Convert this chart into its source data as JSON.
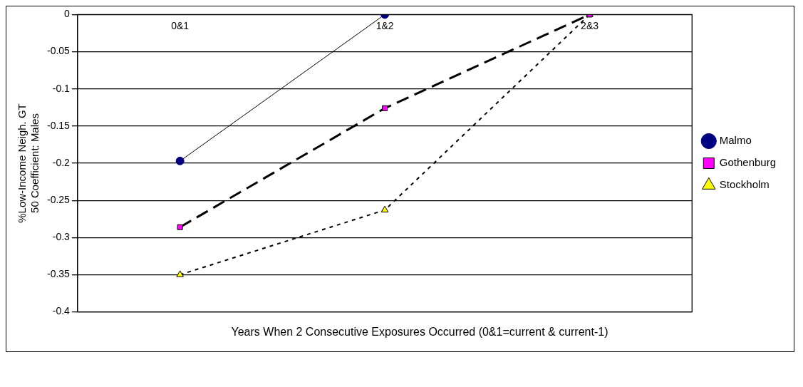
{
  "chart_data": {
    "type": "line",
    "xlabel": "Years When 2 Consecutive Exposures Occurred (0&1=current & current-1)",
    "ylabel": "%Low-Income Neigh. GT 50 Coefficient: Males",
    "categories": [
      "0&1",
      "1&2",
      "2&3"
    ],
    "series": [
      {
        "name": "Malmo",
        "color": "#000080",
        "marker": "circle",
        "line_style": "solid",
        "values": [
          -0.197,
          0,
          null
        ]
      },
      {
        "name": "Gothenburg",
        "color": "#ff00ff",
        "marker": "square",
        "line_style": "dashed",
        "values": [
          -0.286,
          -0.126,
          0
        ]
      },
      {
        "name": "Stockholm",
        "color": "#ffff00",
        "marker": "triangle",
        "line_style": "dotted",
        "values": [
          -0.35,
          -0.263,
          0
        ]
      }
    ],
    "ylim": [
      -0.4,
      0
    ],
    "yticks": [
      0,
      -0.05,
      -0.1,
      -0.15,
      -0.2,
      -0.25,
      -0.3,
      -0.35,
      -0.4
    ],
    "grid": "y",
    "legend": "right"
  }
}
